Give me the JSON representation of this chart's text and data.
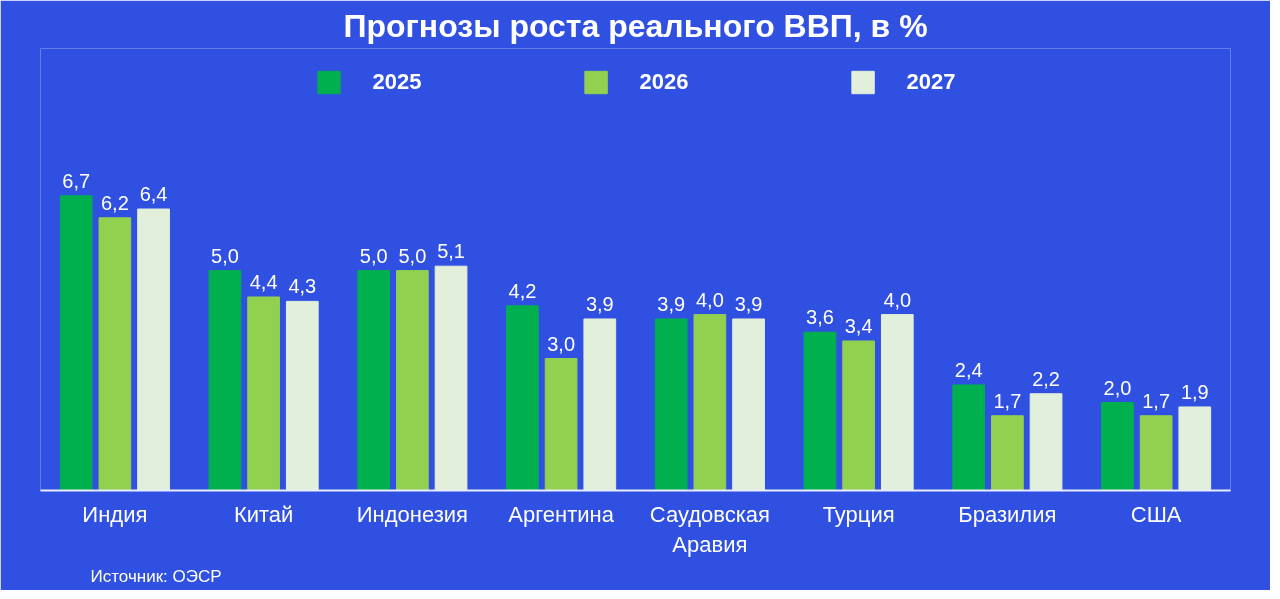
{
  "chart_data": {
    "type": "bar",
    "title": "Прогнозы роста реального ВВП, в %",
    "categories": [
      "Индия",
      "Китай",
      "Индонезия",
      "Аргентина",
      "Саудовская\nАравия",
      "Турция",
      "Бразилия",
      "США"
    ],
    "series": [
      {
        "name": "2025",
        "color": "#00b04f",
        "values": [
          6.7,
          5.0,
          5.0,
          4.2,
          3.9,
          3.6,
          2.4,
          2.0
        ],
        "value_labels": [
          "6,7",
          "5,0",
          "5,0",
          "4,2",
          "3,9",
          "3,6",
          "2,4",
          "2,0"
        ]
      },
      {
        "name": "2026",
        "color": "#92d050",
        "values": [
          6.2,
          4.4,
          5.0,
          3.0,
          4.0,
          3.4,
          1.7,
          1.7
        ],
        "value_labels": [
          "6,2",
          "4,4",
          "5,0",
          "3,0",
          "4,0",
          "3,4",
          "1,7",
          "1,7"
        ]
      },
      {
        "name": "2027",
        "color": "#e2efda",
        "values": [
          6.4,
          4.3,
          5.1,
          3.9,
          3.9,
          4.0,
          2.2,
          1.9
        ],
        "value_labels": [
          "6,4",
          "4,3",
          "5,1",
          "3,9",
          "3,9",
          "4,0",
          "2,2",
          "1,9"
        ]
      }
    ],
    "legend": "top",
    "grid": false,
    "annotations": [
      "Источник: ОЭСР"
    ]
  }
}
